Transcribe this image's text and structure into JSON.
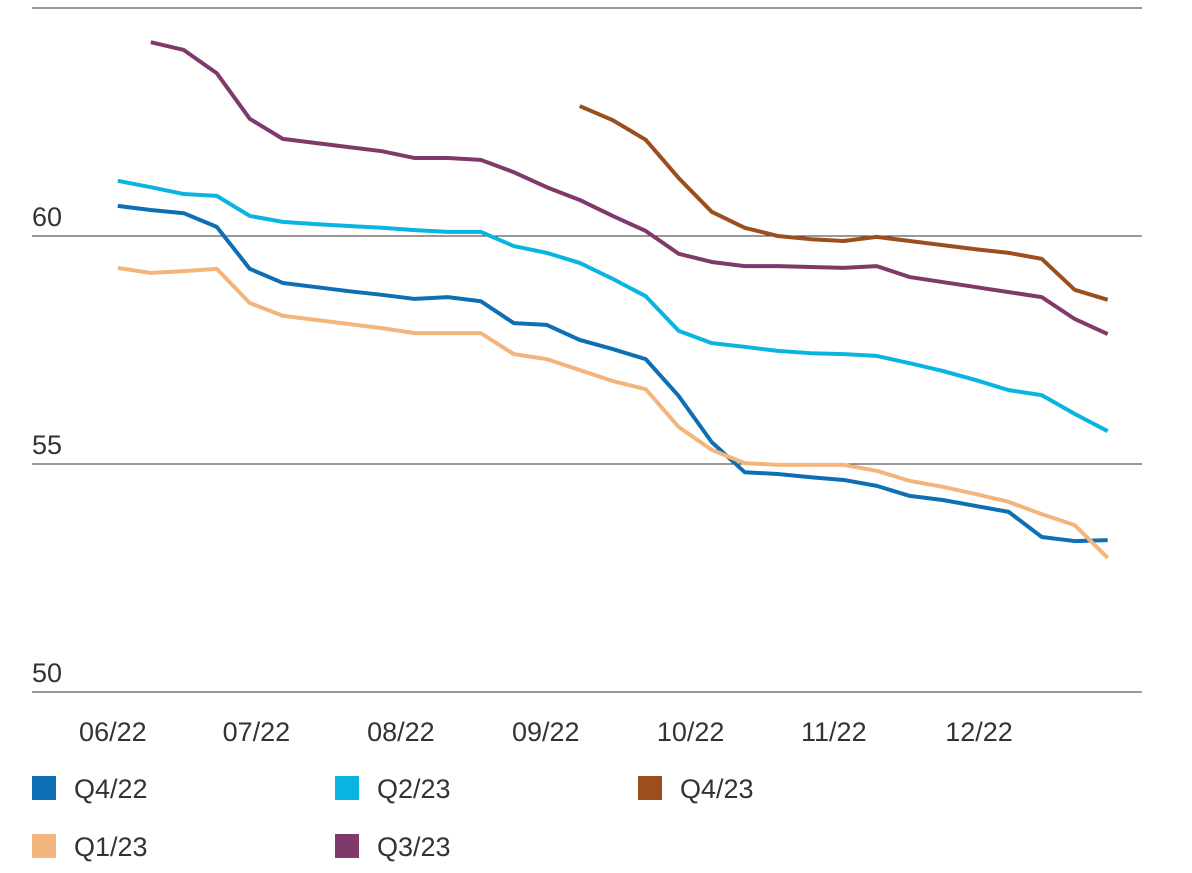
{
  "chart_data": {
    "type": "line",
    "x": [
      0,
      1,
      2,
      3,
      4,
      5,
      6,
      7,
      8,
      9,
      10,
      11,
      12,
      13,
      14,
      15,
      16,
      17,
      18,
      19,
      20,
      21,
      22,
      23,
      24,
      25,
      26,
      27,
      28,
      29,
      30
    ],
    "xlim": [
      -2.6,
      31.04
    ],
    "xticks": [
      {
        "value": -0.15,
        "label": "06/22"
      },
      {
        "value": 4.2,
        "label": "07/22"
      },
      {
        "value": 8.58,
        "label": "08/22"
      },
      {
        "value": 12.97,
        "label": "09/22"
      },
      {
        "value": 17.36,
        "label": "10/22"
      },
      {
        "value": 21.7,
        "label": "11/22"
      },
      {
        "value": 26.1,
        "label": "12/22"
      }
    ],
    "ylim": [
      50,
      65
    ],
    "yticks": [
      50,
      55,
      60
    ],
    "grid": true,
    "series": [
      {
        "name": "Q4/22",
        "color": "#0f6fb5",
        "values": [
          60.66,
          60.57,
          60.5,
          60.2,
          59.28,
          58.97,
          58.88,
          58.79,
          58.71,
          58.62,
          58.66,
          58.57,
          58.09,
          58.05,
          57.72,
          57.52,
          57.3,
          56.49,
          55.48,
          54.82,
          54.78,
          54.71,
          54.65,
          54.52,
          54.3,
          54.21,
          54.08,
          53.95,
          53.4,
          53.31,
          53.33
        ]
      },
      {
        "name": "Q1/23",
        "color": "#f2b57c",
        "values": [
          59.3,
          59.19,
          59.23,
          59.28,
          58.53,
          58.25,
          58.16,
          58.07,
          57.98,
          57.87,
          57.87,
          57.87,
          57.41,
          57.3,
          57.06,
          56.82,
          56.64,
          55.81,
          55.31,
          55.02,
          54.98,
          54.98,
          54.98,
          54.85,
          54.63,
          54.5,
          54.34,
          54.17,
          53.9,
          53.66,
          52.94
        ]
      },
      {
        "name": "Q2/23",
        "color": "#0ab4e0",
        "values": [
          61.21,
          61.07,
          60.92,
          60.88,
          60.44,
          60.31,
          60.26,
          60.22,
          60.18,
          60.13,
          60.09,
          60.09,
          59.78,
          59.63,
          59.41,
          59.06,
          58.68,
          57.92,
          57.65,
          57.57,
          57.48,
          57.43,
          57.41,
          57.37,
          57.21,
          57.04,
          56.84,
          56.62,
          56.51,
          56.1,
          55.72
        ]
      },
      {
        "name": "Q3/23",
        "color": "#7f3a6b",
        "values": [
          null,
          64.25,
          64.08,
          63.57,
          62.57,
          62.13,
          62.04,
          61.95,
          61.86,
          61.71,
          61.71,
          61.67,
          61.4,
          61.07,
          60.79,
          60.44,
          60.11,
          59.61,
          59.43,
          59.34,
          59.34,
          59.32,
          59.3,
          59.34,
          59.1,
          58.99,
          58.88,
          58.77,
          58.66,
          58.18,
          57.85
        ]
      },
      {
        "name": "Q4/23",
        "color": "#9b4f1e",
        "values": [
          null,
          null,
          null,
          null,
          null,
          null,
          null,
          null,
          null,
          null,
          null,
          null,
          null,
          null,
          62.85,
          62.54,
          62.11,
          61.27,
          60.53,
          60.18,
          60.0,
          59.93,
          59.89,
          59.98,
          59.89,
          59.8,
          59.71,
          59.63,
          59.5,
          58.82,
          58.6
        ]
      }
    ]
  }
}
